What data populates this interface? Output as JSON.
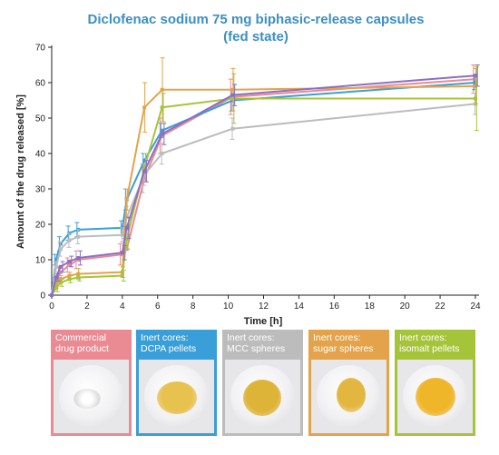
{
  "chart_data": {
    "type": "line",
    "title": "Diclofenac sodium 75 mg biphasic-release capsules",
    "subtitle": "(fed state)",
    "xlabel": "Time [h]",
    "ylabel": "Amount of the drug released [%]",
    "xlim": [
      0,
      24
    ],
    "ylim": [
      0,
      70
    ],
    "xticks": [
      0,
      2,
      4,
      6,
      8,
      10,
      12,
      14,
      16,
      18,
      20,
      22,
      24
    ],
    "yticks": [
      0,
      10,
      20,
      30,
      40,
      50,
      60,
      70
    ],
    "grid": false,
    "series": [
      {
        "name": "Commercial drug product",
        "color": "#ea8a92",
        "x": [
          0,
          0.25,
          0.5,
          1,
          1.5,
          4,
          4.25,
          5.25,
          6.25,
          10.25,
          24
        ],
        "y": [
          0,
          4,
          6.5,
          8.5,
          10,
          11.5,
          13,
          33,
          45,
          56,
          61
        ],
        "err": [
          0,
          1,
          1.5,
          2,
          2.5,
          3,
          3,
          4,
          5,
          5,
          4
        ]
      },
      {
        "name": "Inert cores: DCPA pellets",
        "color": "#3a9fd8",
        "x": [
          0,
          0.25,
          0.5,
          1,
          1.5,
          4,
          4.25,
          5.25,
          6.25,
          10.25,
          24
        ],
        "y": [
          0,
          10,
          14.5,
          17.5,
          18.5,
          19,
          27,
          38,
          46.5,
          55,
          60
        ],
        "err": [
          0,
          1.5,
          2,
          2,
          2,
          2,
          3,
          2,
          2,
          3,
          2
        ]
      },
      {
        "name": "Inert cores: MCC spheres",
        "color": "#bcbcbc",
        "x": [
          0,
          0.25,
          0.5,
          1,
          1.5,
          4,
          4.25,
          5.25,
          6.25,
          10.25,
          24
        ],
        "y": [
          0,
          8,
          13,
          15.5,
          16.5,
          17,
          22,
          34,
          40,
          47,
          54
        ],
        "err": [
          0,
          1.5,
          2,
          2,
          2,
          2,
          3,
          3,
          3,
          3,
          3
        ]
      },
      {
        "name": "Inert cores: sugar spheres",
        "color": "#e4a34a",
        "x": [
          0,
          0.25,
          0.5,
          1,
          1.5,
          4,
          4.25,
          5.25,
          6.25,
          10.25,
          24
        ],
        "y": [
          0,
          3,
          4.5,
          5.5,
          6,
          6.5,
          27,
          53,
          58,
          58,
          59
        ],
        "err": [
          0,
          1,
          1,
          1,
          1.5,
          1.5,
          3,
          7,
          9,
          6,
          5
        ]
      },
      {
        "name": "Inert cores: isomalt pellets",
        "color": "#a6c43a",
        "x": [
          0,
          0.25,
          0.5,
          1,
          1.5,
          4,
          4.25,
          5.25,
          6.25,
          10.25,
          24
        ],
        "y": [
          0,
          2,
          3.5,
          4.5,
          5,
          5.5,
          16,
          36,
          53,
          55.5,
          55.5
        ],
        "err": [
          0,
          1,
          1,
          1,
          1,
          1.5,
          3,
          4,
          4,
          7,
          9
        ]
      },
      {
        "name": "",
        "color": "#8a6fc4",
        "x": [
          0,
          0.25,
          0.5,
          1,
          1.5,
          4,
          4.25,
          5.25,
          6.25,
          10.25,
          24
        ],
        "y": [
          0,
          5,
          8,
          9.5,
          10.5,
          12,
          19,
          35,
          45.5,
          56.5,
          62
        ],
        "err": [
          0,
          1,
          1.5,
          1.5,
          2,
          2,
          3,
          3,
          3,
          3,
          3
        ]
      }
    ]
  },
  "legend": [
    {
      "label": "Commercial drug product",
      "color": "#ea8a92",
      "powder": "#ffffff"
    },
    {
      "label": "Inert cores: DCPA pellets",
      "color": "#3a9fd8",
      "powder": "#e8c24e"
    },
    {
      "label": "Inert cores: MCC spheres",
      "color": "#bcbcbc",
      "powder": "#ddb437"
    },
    {
      "label": "Inert cores: sugar spheres",
      "color": "#e4a34a",
      "powder": "#e3b640"
    },
    {
      "label": "Inert cores: isomalt pellets",
      "color": "#a6c43a",
      "powder": "#f0b62a"
    }
  ]
}
